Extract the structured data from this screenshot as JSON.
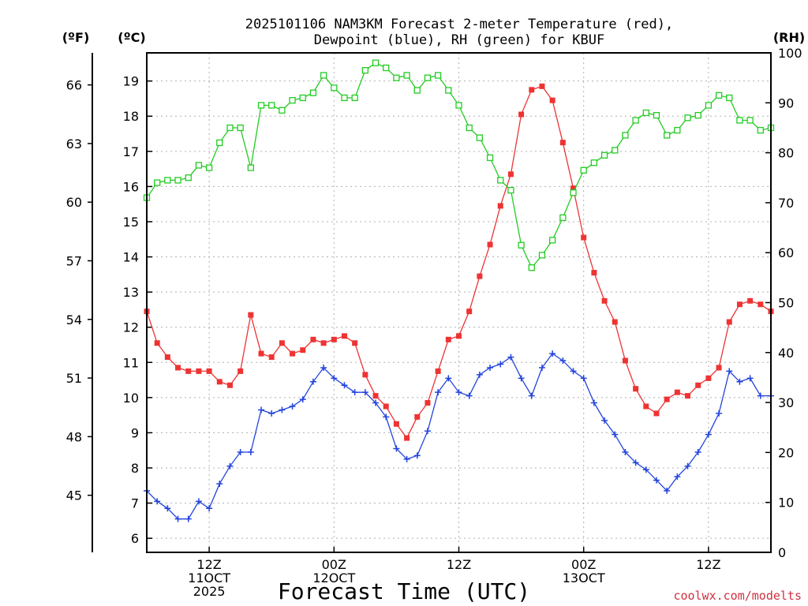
{
  "chart_data": {
    "type": "line",
    "title": "2025101106 NAM3KM Forecast 2-meter Temperature (red),",
    "subtitle": "Dewpoint (blue), RH (green) for KBUF",
    "xlabel": "Forecast Time (UTC)",
    "left_unit_f": "(ºF)",
    "left_unit_c": "(ºC)",
    "right_unit": "(RH)",
    "watermark": "coolwx.com/modelts",
    "x_ticks": [
      {
        "hour": 6,
        "lines": [
          "12Z",
          "11OCT",
          "2025"
        ]
      },
      {
        "hour": 18,
        "lines": [
          "00Z",
          "12OCT"
        ]
      },
      {
        "hour": 30,
        "lines": [
          "12Z"
        ]
      },
      {
        "hour": 42,
        "lines": [
          "00Z",
          "13OCT"
        ]
      },
      {
        "hour": 54,
        "lines": [
          "12Z"
        ]
      }
    ],
    "x_range": [
      0,
      60
    ],
    "y_celsius": {
      "range": [
        5.6,
        19.8
      ],
      "ticks": [
        6,
        7,
        8,
        9,
        10,
        11,
        12,
        13,
        14,
        15,
        16,
        17,
        18,
        19
      ]
    },
    "y_fahrenheit": {
      "ticks": [
        45,
        48,
        51,
        54,
        57,
        60,
        63,
        66
      ]
    },
    "y_rh": {
      "range": [
        0,
        100
      ],
      "ticks": [
        0,
        10,
        20,
        30,
        40,
        50,
        60,
        70,
        80,
        90,
        100
      ]
    },
    "colors": {
      "temperature": "#ee3333",
      "dewpoint": "#2244dd",
      "rh": "#22cc22",
      "grid": "#b0b0b0"
    },
    "series": [
      {
        "name": "Temperature",
        "unit": "C",
        "marker": "filled-square",
        "hours": [
          0,
          1,
          2,
          3,
          4,
          5,
          6,
          7,
          8,
          9,
          10,
          11,
          12,
          13,
          14,
          15,
          16,
          17,
          18,
          19,
          20,
          21,
          22,
          23,
          24,
          25,
          26,
          27,
          28,
          29,
          30,
          31,
          32,
          33,
          34,
          35,
          36,
          37,
          38,
          39,
          40,
          41,
          42,
          43,
          44,
          45,
          46,
          47,
          48,
          49,
          50,
          51,
          52,
          53,
          54,
          55,
          56,
          57,
          58,
          59,
          60
        ],
        "values": [
          12.45,
          11.55,
          11.15,
          10.85,
          10.75,
          10.75,
          10.75,
          10.45,
          10.35,
          10.75,
          12.35,
          11.25,
          11.15,
          11.55,
          11.25,
          11.35,
          11.65,
          11.55,
          11.65,
          11.75,
          11.55,
          10.65,
          10.05,
          9.75,
          9.25,
          8.85,
          9.45,
          9.85,
          10.75,
          11.65,
          11.75,
          12.45,
          13.45,
          14.35,
          15.45,
          16.35,
          18.05,
          18.75,
          18.85,
          18.45,
          17.25,
          15.95,
          14.55,
          13.55,
          12.75,
          12.15,
          11.05,
          10.25,
          9.75,
          9.55,
          9.95,
          10.15,
          10.05,
          10.35,
          10.55,
          10.85,
          12.15,
          12.65,
          12.75,
          12.65,
          12.45
        ]
      },
      {
        "name": "Dewpoint",
        "unit": "C",
        "marker": "plus",
        "hours": [
          0,
          1,
          2,
          3,
          4,
          5,
          6,
          7,
          8,
          9,
          10,
          11,
          12,
          13,
          14,
          15,
          16,
          17,
          18,
          19,
          20,
          21,
          22,
          23,
          24,
          25,
          26,
          27,
          28,
          29,
          30,
          31,
          32,
          33,
          34,
          35,
          36,
          37,
          38,
          39,
          40,
          41,
          42,
          43,
          44,
          45,
          46,
          47,
          48,
          49,
          50,
          51,
          52,
          53,
          54,
          55,
          56,
          57,
          58,
          59,
          60
        ],
        "values": [
          7.35,
          7.05,
          6.85,
          6.55,
          6.55,
          7.05,
          6.85,
          7.55,
          8.05,
          8.45,
          8.45,
          9.65,
          9.55,
          9.65,
          9.75,
          9.95,
          10.45,
          10.85,
          10.55,
          10.35,
          10.15,
          10.15,
          9.85,
          9.45,
          8.55,
          8.25,
          8.35,
          9.05,
          10.15,
          10.55,
          10.15,
          10.05,
          10.65,
          10.85,
          10.95,
          11.15,
          10.55,
          10.05,
          10.85,
          11.25,
          11.05,
          10.75,
          10.55,
          9.85,
          9.35,
          8.95,
          8.45,
          8.15,
          7.95,
          7.65,
          7.35,
          7.75,
          8.05,
          8.45,
          8.95,
          9.55,
          10.75,
          10.45,
          10.55,
          10.05,
          10.05
        ]
      },
      {
        "name": "RH",
        "unit": "%",
        "marker": "hollow-square",
        "hours": [
          0,
          1,
          2,
          3,
          4,
          5,
          6,
          7,
          8,
          9,
          10,
          11,
          12,
          13,
          14,
          15,
          16,
          17,
          18,
          19,
          20,
          21,
          22,
          23,
          24,
          25,
          26,
          27,
          28,
          29,
          30,
          31,
          32,
          33,
          34,
          35,
          36,
          37,
          38,
          39,
          40,
          41,
          42,
          43,
          44,
          45,
          46,
          47,
          48,
          49,
          50,
          51,
          52,
          53,
          54,
          55,
          56,
          57,
          58,
          59,
          60
        ],
        "values": [
          71,
          74,
          74.5,
          74.5,
          75,
          77.5,
          77,
          82,
          85,
          85,
          77,
          89.5,
          89.5,
          88.5,
          90.5,
          91,
          92,
          95.5,
          93,
          91,
          91,
          96.5,
          98,
          97,
          95,
          95.5,
          92.5,
          95,
          95.5,
          92.5,
          89.5,
          85,
          83,
          79,
          74.5,
          72.5,
          61.5,
          57,
          59.5,
          62.5,
          67,
          72,
          76.5,
          78,
          79.5,
          80.5,
          83.5,
          86.5,
          88,
          87.5,
          83.5,
          84.5,
          87,
          87.5,
          89.5,
          91.5,
          91,
          86.5,
          86.5,
          84.5,
          85
        ]
      }
    ]
  }
}
